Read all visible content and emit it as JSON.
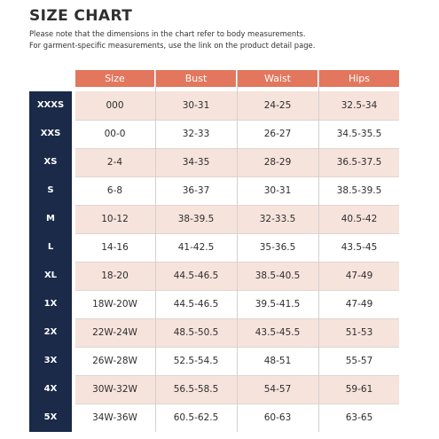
{
  "title": "SIZE CHART",
  "note_line1": "Please note that the dimensions in the chart refer to body measurements.",
  "note_line2": "For garment-specific measurements, use the link on the product detail page.",
  "colors": {
    "header": "#e2775e",
    "sidebar": "#1b2a49",
    "row_alt": "#f6e3dc"
  },
  "columns": [
    "Size",
    "Bust",
    "Waist",
    "Hips"
  ],
  "rows": [
    {
      "label": "XXXS",
      "cells": [
        "000",
        "30-31",
        "24-25",
        "32.5-34"
      ]
    },
    {
      "label": "XXS",
      "cells": [
        "00-0",
        "32-33",
        "26-27",
        "34.5-35.5"
      ]
    },
    {
      "label": "XS",
      "cells": [
        "2-4",
        "34-35",
        "28-29",
        "36.5-37.5"
      ]
    },
    {
      "label": "S",
      "cells": [
        "6-8",
        "36-37",
        "30-31",
        "38.5-39.5"
      ]
    },
    {
      "label": "M",
      "cells": [
        "10-12",
        "38-39.5",
        "32-33.5",
        "40.5-42"
      ]
    },
    {
      "label": "L",
      "cells": [
        "14-16",
        "41-42.5",
        "35-36.5",
        "43.5-45"
      ]
    },
    {
      "label": "XL",
      "cells": [
        "18-20",
        "44.5-46.5",
        "38.5-40.5",
        "47-49"
      ]
    },
    {
      "label": "1X",
      "cells": [
        "18W-20W",
        "44.5-46.5",
        "39.5-41.5",
        "47-49"
      ]
    },
    {
      "label": "2X",
      "cells": [
        "22W-24W",
        "48.5-50.5",
        "43.5-45.5",
        "51-53"
      ]
    },
    {
      "label": "3X",
      "cells": [
        "26W-28W",
        "52.5-54.5",
        "48-51",
        "55-57"
      ]
    },
    {
      "label": "4X",
      "cells": [
        "30W-32W",
        "56.5-58.5",
        "54-57",
        "59-61"
      ]
    },
    {
      "label": "5X",
      "cells": [
        "34W-36W",
        "60.5-62.5",
        "60-63",
        "63-65"
      ]
    }
  ]
}
